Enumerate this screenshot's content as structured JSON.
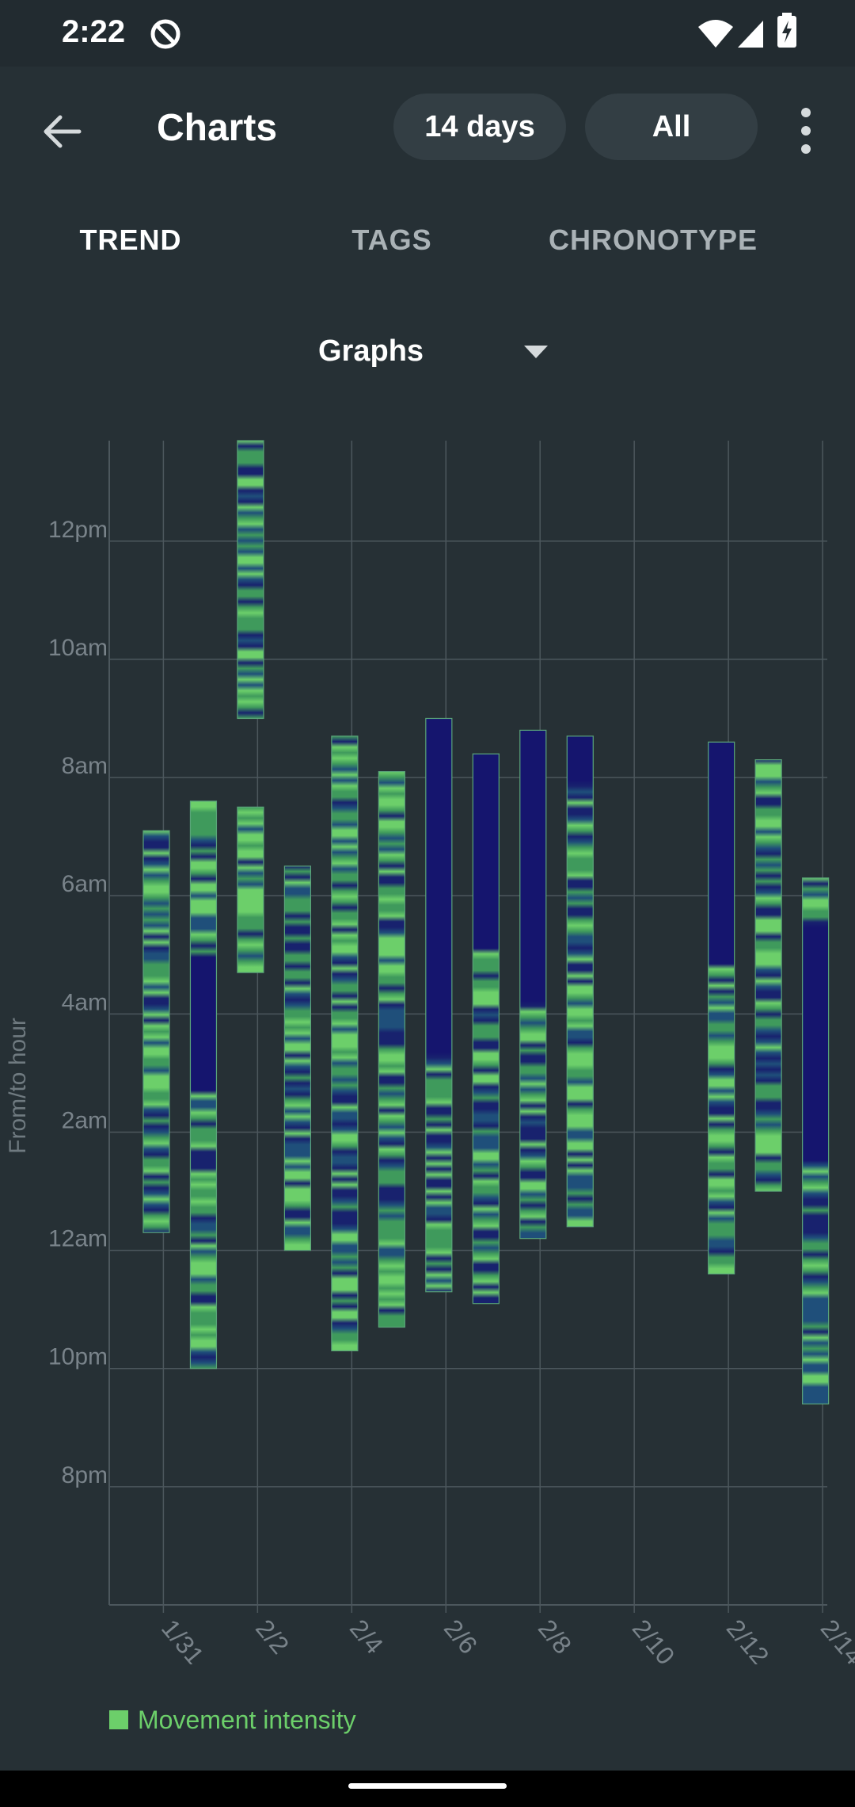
{
  "status_bar": {
    "time": "2:22"
  },
  "app_bar": {
    "title": "Charts",
    "range_button": "14 days",
    "filter_button": "All"
  },
  "tabs": [
    {
      "label": "TREND",
      "active": true
    },
    {
      "label": "TAGS",
      "active": false
    },
    {
      "label": "CHRONOTYPE",
      "active": false
    }
  ],
  "view_selector": {
    "label": "Graphs"
  },
  "colors": {
    "background": "#263035",
    "grid": "#4c575d",
    "label": "#79838a",
    "deep_sleep": "#15156e",
    "movement": "#6ccf6a"
  },
  "chart_data": {
    "type": "bar",
    "subtype": "floating-range (sleep records, hours relative to midnight)",
    "ylabel": "From/to hour",
    "xlabel": "",
    "y_ticks": [
      {
        "value": -4,
        "label": "8pm"
      },
      {
        "value": -2,
        "label": "10pm"
      },
      {
        "value": 0,
        "label": "12am"
      },
      {
        "value": 2,
        "label": "2am"
      },
      {
        "value": 4,
        "label": "4am"
      },
      {
        "value": 6,
        "label": "6am"
      },
      {
        "value": 8,
        "label": "8am"
      },
      {
        "value": 10,
        "label": "10am"
      },
      {
        "value": 12,
        "label": "12pm"
      }
    ],
    "ylim": [
      -6,
      13.7
    ],
    "x_ticks": [
      {
        "value": 0,
        "label": "1/31"
      },
      {
        "value": 2,
        "label": "2/2"
      },
      {
        "value": 4,
        "label": "2/4"
      },
      {
        "value": 6,
        "label": "2/6"
      },
      {
        "value": 8,
        "label": "2/8"
      },
      {
        "value": 10,
        "label": "2/10"
      },
      {
        "value": 12,
        "label": "2/12"
      },
      {
        "value": 14,
        "label": "2/14"
      }
    ],
    "xlim": [
      -1.15,
      14.1
    ],
    "grid": true,
    "legend": {
      "position": "bottom-left",
      "entries": [
        "Movement intensity"
      ]
    },
    "records": [
      {
        "date": "1/31",
        "x": -0.15,
        "from": 0.3,
        "to": 7.1,
        "dark_from": null,
        "dark_to": null,
        "seed": 11
      },
      {
        "date": "2/1",
        "x": 0.85,
        "from": -2.0,
        "to": 7.6,
        "dark_from": 2.7,
        "dark_to": 5.0,
        "seed": 23
      },
      {
        "date": "2/1",
        "x": 1.85,
        "from": 4.7,
        "to": 7.5,
        "dark_from": null,
        "dark_to": null,
        "seed": 37
      },
      {
        "date": "2/1",
        "x": 1.85,
        "from": 9.0,
        "to": 13.7,
        "dark_from": null,
        "dark_to": null,
        "seed": 41
      },
      {
        "date": "2/3",
        "x": 2.85,
        "from": 0.0,
        "to": 6.5,
        "dark_from": null,
        "dark_to": null,
        "seed": 53
      },
      {
        "date": "2/4",
        "x": 3.85,
        "from": -1.7,
        "to": 8.7,
        "dark_from": null,
        "dark_to": null,
        "seed": 61
      },
      {
        "date": "2/5",
        "x": 4.85,
        "from": -1.3,
        "to": 8.1,
        "dark_from": null,
        "dark_to": null,
        "seed": 73
      },
      {
        "date": "2/5",
        "x": 5.85,
        "from": -0.7,
        "to": 9.0,
        "dark_from": 3.3,
        "dark_to": 9.0,
        "seed": 89
      },
      {
        "date": "2/6",
        "x": 6.85,
        "from": -0.9,
        "to": 8.4,
        "dark_from": 5.1,
        "dark_to": 8.4,
        "seed": 97
      },
      {
        "date": "2/7",
        "x": 7.85,
        "from": 0.2,
        "to": 8.8,
        "dark_from": 4.2,
        "dark_to": 8.8,
        "seed": 101
      },
      {
        "date": "2/8",
        "x": 8.85,
        "from": 0.4,
        "to": 8.7,
        "dark_from": 7.9,
        "dark_to": 8.7,
        "seed": 113
      },
      {
        "date": "2/11",
        "x": 11.85,
        "from": -0.4,
        "to": 8.6,
        "dark_from": 4.8,
        "dark_to": 8.6,
        "seed": 127
      },
      {
        "date": "2/12",
        "x": 12.85,
        "from": 1.0,
        "to": 8.3,
        "dark_from": null,
        "dark_to": null,
        "seed": 131
      },
      {
        "date": "2/13",
        "x": 13.85,
        "from": -2.6,
        "to": 6.3,
        "dark_from": 1.5,
        "dark_to": 5.5,
        "seed": 139
      }
    ]
  },
  "legend_label": "Movement intensity"
}
